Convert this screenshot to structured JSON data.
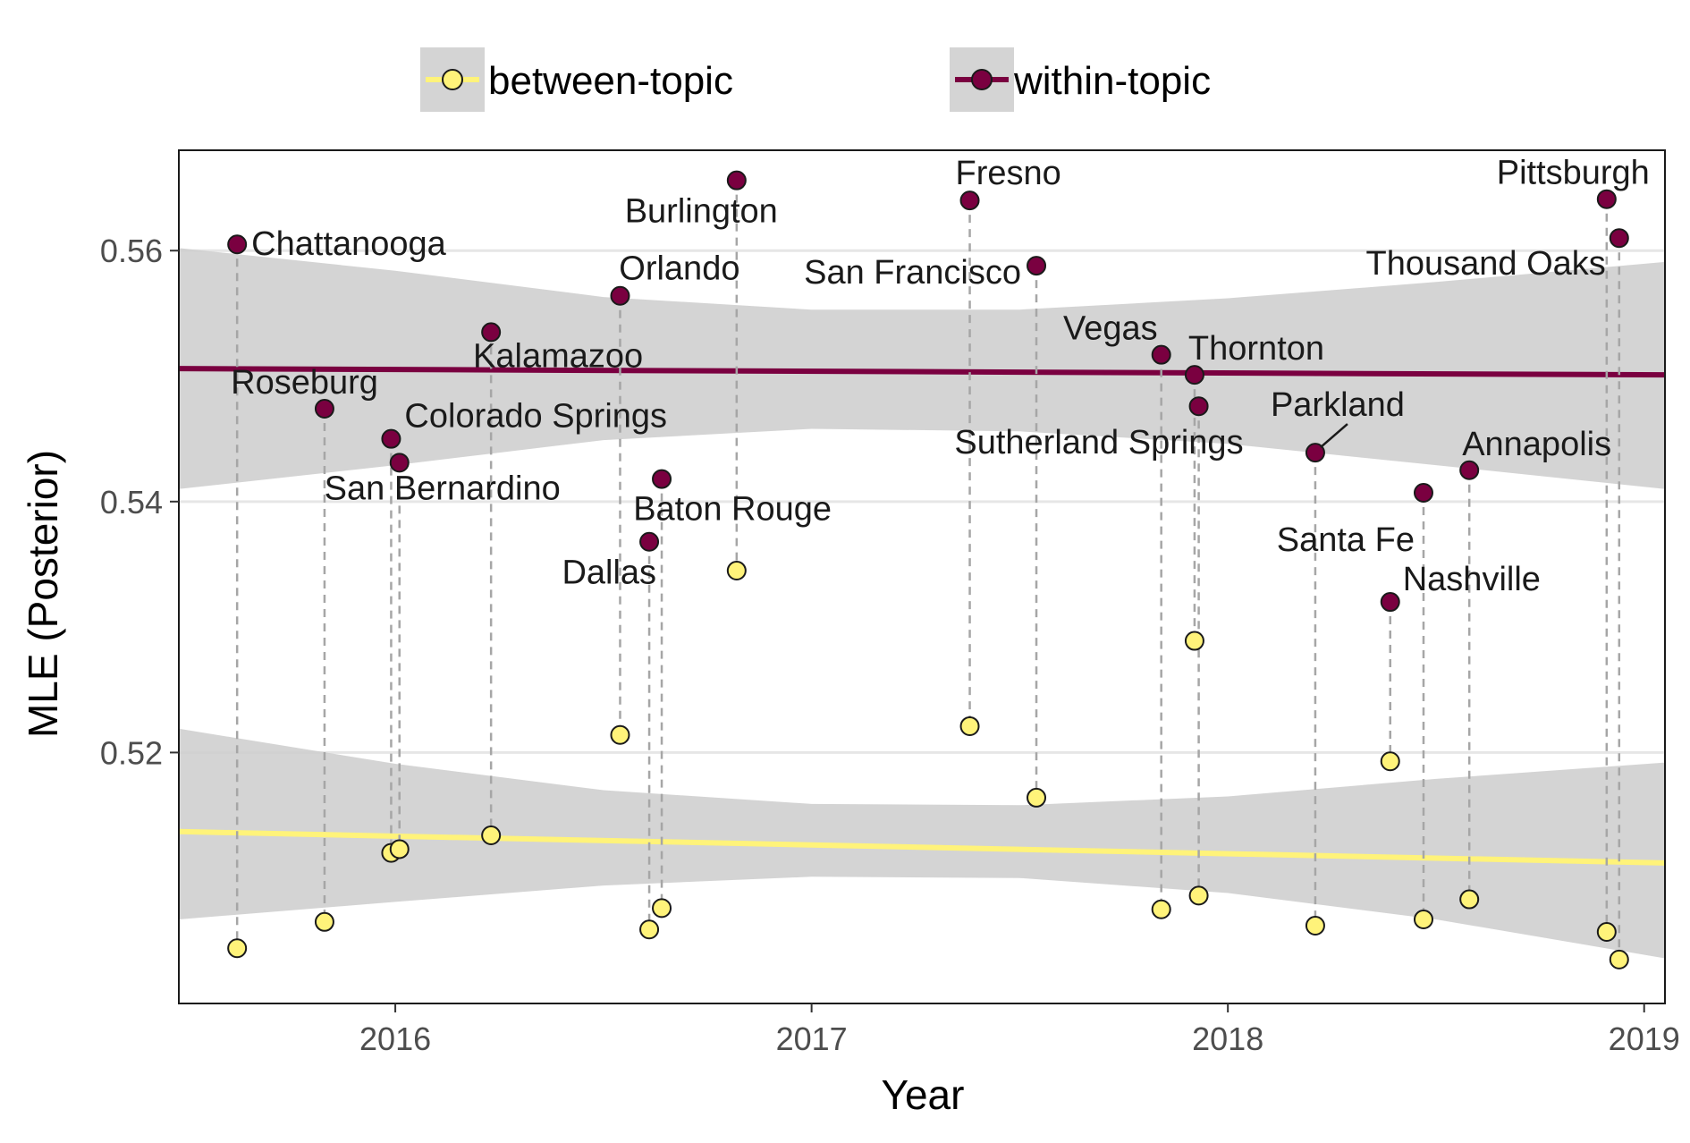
{
  "chart_data": {
    "type": "scatter",
    "xlabel": "Year",
    "ylabel": "MLE (Posterior)",
    "xlim": [
      2015.48,
      2019.05
    ],
    "ylim": [
      0.5,
      0.568
    ],
    "x_ticks": [
      2016,
      2017,
      2018,
      2019
    ],
    "x_tick_labels": [
      "2016",
      "2017",
      "2018",
      "2019"
    ],
    "y_ticks": [
      0.52,
      0.54,
      0.56
    ],
    "y_tick_labels": [
      "0.52",
      "0.54",
      "0.56"
    ],
    "grid": true,
    "legend_position": "top",
    "colors": {
      "within": "#7a0040",
      "between": "#fff37a",
      "band": "#cccccc",
      "grid": "#e6e6e6",
      "connector": "#a6a6a6"
    },
    "series": [
      {
        "name": "between-topic",
        "trend": {
          "x": [
            2015.48,
            2019.05
          ],
          "y": [
            0.5137,
            0.5112
          ]
        },
        "band": {
          "x": [
            2015.48,
            2016.0,
            2016.5,
            2017.0,
            2017.5,
            2018.0,
            2018.5,
            2019.05
          ],
          "lower": [
            0.5067,
            0.5081,
            0.5094,
            0.5101,
            0.51,
            0.5088,
            0.5067,
            0.5036
          ],
          "upper": [
            0.5219,
            0.5191,
            0.517,
            0.5159,
            0.5158,
            0.5165,
            0.5179,
            0.5192
          ]
        }
      },
      {
        "name": "within-topic",
        "trend": {
          "x": [
            2015.48,
            2019.05
          ],
          "y": [
            0.5506,
            0.5501
          ]
        },
        "band": {
          "x": [
            2015.48,
            2016.0,
            2016.5,
            2017.0,
            2017.5,
            2018.0,
            2018.5,
            2019.05
          ],
          "lower": [
            0.541,
            0.5429,
            0.5449,
            0.5458,
            0.5456,
            0.5446,
            0.5429,
            0.541
          ],
          "upper": [
            0.5602,
            0.5584,
            0.5563,
            0.5553,
            0.5553,
            0.5562,
            0.5575,
            0.5591
          ]
        }
      }
    ],
    "points": [
      {
        "label": "Chattanooga",
        "x": 2015.62,
        "within": 0.5605,
        "between": 0.5044
      },
      {
        "label": "Roseburg",
        "x": 2015.83,
        "within": 0.5474,
        "between": 0.5065
      },
      {
        "label": "Colorado Springs",
        "x": 2015.99,
        "within": 0.545,
        "between": 0.512
      },
      {
        "label": "San Bernardino",
        "x": 2016.01,
        "within": 0.5431,
        "between": 0.5123
      },
      {
        "label": "Kalamazoo",
        "x": 2016.23,
        "within": 0.5535,
        "between": 0.5134
      },
      {
        "label": "Orlando",
        "x": 2016.54,
        "within": 0.5564,
        "between": 0.5214
      },
      {
        "label": "Dallas",
        "x": 2016.61,
        "within": 0.5368,
        "between": 0.5059
      },
      {
        "label": "Baton Rouge",
        "x": 2016.64,
        "within": 0.5418,
        "between": 0.5076
      },
      {
        "label": "Burlington",
        "x": 2016.82,
        "within": 0.5656,
        "between": 0.5345
      },
      {
        "label": "Fresno",
        "x": 2017.38,
        "within": 0.564,
        "between": 0.5221
      },
      {
        "label": "San Francisco",
        "x": 2017.54,
        "within": 0.5588,
        "between": 0.5164
      },
      {
        "label": "Vegas",
        "x": 2017.84,
        "within": 0.5517,
        "between": 0.5075
      },
      {
        "label": "Thornton",
        "x": 2017.92,
        "within": 0.5501,
        "between": 0.5289
      },
      {
        "label": "Sutherland Springs",
        "x": 2017.93,
        "within": 0.5476,
        "between": 0.5086
      },
      {
        "label": "Parkland",
        "x": 2018.21,
        "within": 0.5439,
        "between": 0.5062
      },
      {
        "label": "Nashville",
        "x": 2018.39,
        "within": 0.532,
        "between": 0.5193
      },
      {
        "label": "Santa Fe",
        "x": 2018.47,
        "within": 0.5407,
        "between": 0.5067
      },
      {
        "label": "Annapolis",
        "x": 2018.58,
        "within": 0.5425,
        "between": 0.5083
      },
      {
        "label": "Pittsburgh",
        "x": 2018.91,
        "within": 0.5641,
        "between": 0.5057
      },
      {
        "label": "Thousand Oaks",
        "x": 2018.94,
        "within": 0.561,
        "between": 0.5035
      }
    ]
  }
}
